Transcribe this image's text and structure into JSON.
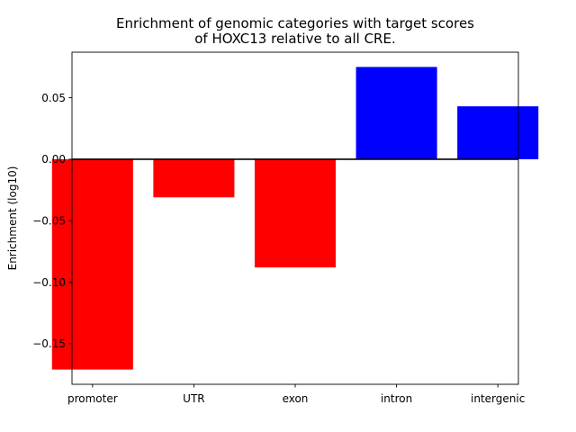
{
  "chart_data": {
    "type": "bar",
    "title_lines": [
      "Enrichment of genomic categories with target scores",
      "of HOXC13 relative to all CRE."
    ],
    "xlabel": "",
    "ylabel": "Enrichment (log10)",
    "categories": [
      "promoter",
      "UTR",
      "exon",
      "intron",
      "intergenic"
    ],
    "values": [
      -0.171,
      -0.031,
      -0.088,
      0.075,
      0.043
    ],
    "bar_colors": [
      "#ff0000",
      "#ff0000",
      "#ff0000",
      "#0000ff",
      "#0000ff"
    ],
    "ylim": [
      -0.183,
      0.087
    ],
    "yticks": [
      -0.15,
      -0.1,
      -0.05,
      0.0,
      0.05
    ],
    "ytick_labels": [
      "−0.15",
      "−0.10",
      "−0.05",
      "0.00",
      "0.05"
    ],
    "zero_line": true,
    "grid": false,
    "legend": "none"
  }
}
